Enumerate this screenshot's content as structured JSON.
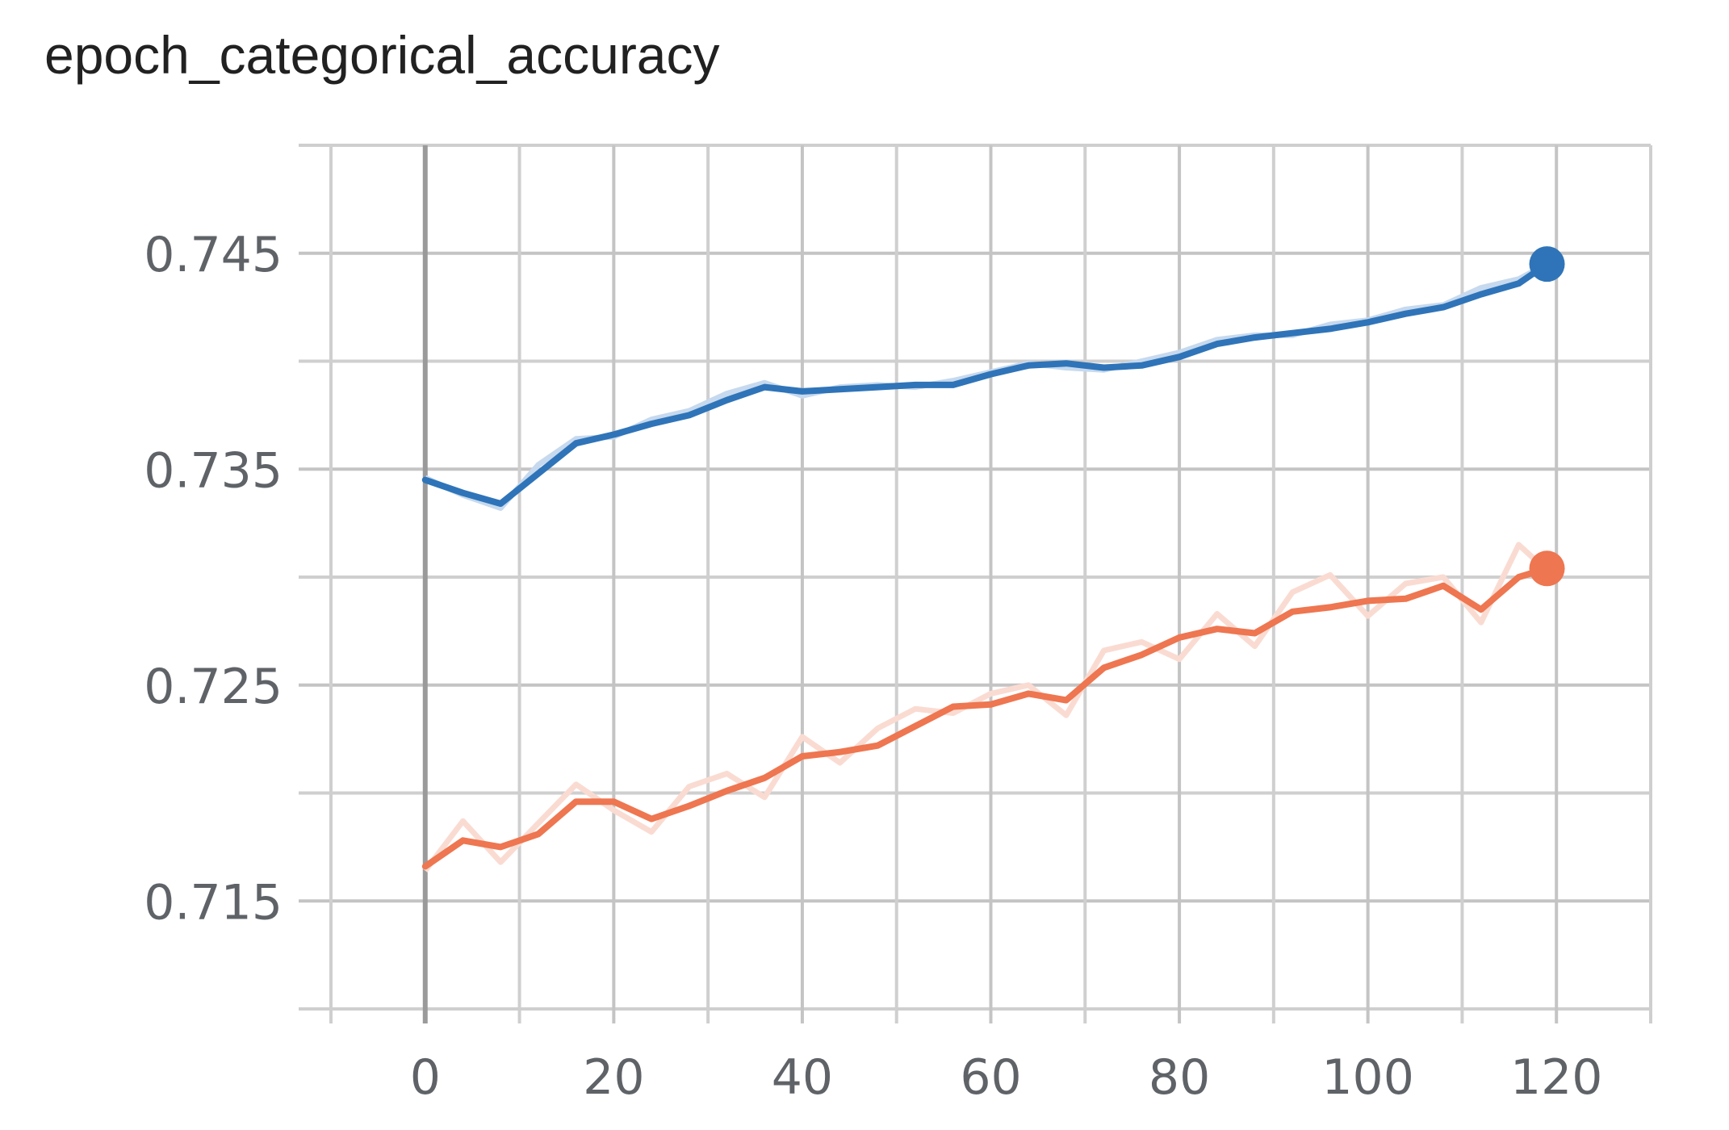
{
  "title": "epoch_categorical_accuracy",
  "chart_data": {
    "type": "line",
    "title": "epoch_categorical_accuracy",
    "xlabel": "",
    "ylabel": "",
    "xlim": [
      -10,
      130
    ],
    "ylim": [
      0.71,
      0.75
    ],
    "x_ticks": [
      0,
      20,
      40,
      60,
      80,
      100,
      120
    ],
    "x_tick_labels": [
      "0",
      "20",
      "40",
      "60",
      "80",
      "100",
      "120"
    ],
    "y_ticks": [
      0.715,
      0.725,
      0.735,
      0.745
    ],
    "y_tick_labels": [
      "0.715",
      "0.725",
      "0.735",
      "0.745"
    ],
    "y_minor_gridlines": [
      0.71,
      0.72,
      0.73,
      0.74,
      0.75
    ],
    "x_minor_gridlines": [
      -10,
      10,
      30,
      50,
      70,
      90,
      110,
      130
    ],
    "grid": true,
    "legend": "none",
    "series": [
      {
        "color": "#2f74b8",
        "raw_color": "#c6d9ee",
        "x": [
          0,
          4,
          8,
          12,
          16,
          20,
          24,
          28,
          32,
          36,
          40,
          44,
          48,
          52,
          56,
          60,
          64,
          68,
          72,
          76,
          80,
          84,
          88,
          92,
          96,
          100,
          104,
          108,
          112,
          116,
          119
        ],
        "smoothed": [
          0.7345,
          0.7339,
          0.7334,
          0.7348,
          0.7362,
          0.7366,
          0.7371,
          0.7375,
          0.7382,
          0.7388,
          0.7386,
          0.7387,
          0.7388,
          0.7389,
          0.7389,
          0.7394,
          0.7398,
          0.7399,
          0.7397,
          0.7398,
          0.7402,
          0.7408,
          0.7411,
          0.7413,
          0.7415,
          0.7418,
          0.7422,
          0.7425,
          0.7431,
          0.7436,
          0.7445
        ],
        "raw": [
          0.7346,
          0.7338,
          0.7332,
          0.7352,
          0.7364,
          0.7365,
          0.7373,
          0.7377,
          0.7385,
          0.739,
          0.7384,
          0.7388,
          0.7389,
          0.7388,
          0.7391,
          0.7395,
          0.7399,
          0.7397,
          0.7396,
          0.74,
          0.7404,
          0.741,
          0.7412,
          0.7412,
          0.7417,
          0.7419,
          0.7424,
          0.7426,
          0.7434,
          0.7438,
          0.7445
        ],
        "last_value": 0.7445
      },
      {
        "color": "#ee7650",
        "raw_color": "#fadbd2",
        "x": [
          0,
          4,
          8,
          12,
          16,
          20,
          24,
          28,
          32,
          36,
          40,
          44,
          48,
          52,
          56,
          60,
          64,
          68,
          72,
          76,
          80,
          84,
          88,
          92,
          96,
          100,
          104,
          108,
          112,
          116,
          119
        ],
        "smoothed": [
          0.7166,
          0.7178,
          0.7175,
          0.7181,
          0.7196,
          0.7196,
          0.7188,
          0.7194,
          0.7201,
          0.7207,
          0.7217,
          0.7219,
          0.7222,
          0.7231,
          0.724,
          0.7241,
          0.7246,
          0.7243,
          0.7258,
          0.7264,
          0.7272,
          0.7276,
          0.7274,
          0.7284,
          0.7286,
          0.7289,
          0.729,
          0.7296,
          0.7285,
          0.73,
          0.7304
        ],
        "raw": [
          0.7164,
          0.7187,
          0.7168,
          0.7186,
          0.7204,
          0.7192,
          0.7182,
          0.7203,
          0.7209,
          0.7198,
          0.7226,
          0.7214,
          0.723,
          0.7239,
          0.7237,
          0.7246,
          0.725,
          0.7236,
          0.7266,
          0.727,
          0.7262,
          0.7283,
          0.7268,
          0.7293,
          0.7301,
          0.7282,
          0.7297,
          0.73,
          0.7279,
          0.7315,
          0.7303
        ],
        "last_value": 0.7304
      }
    ]
  }
}
